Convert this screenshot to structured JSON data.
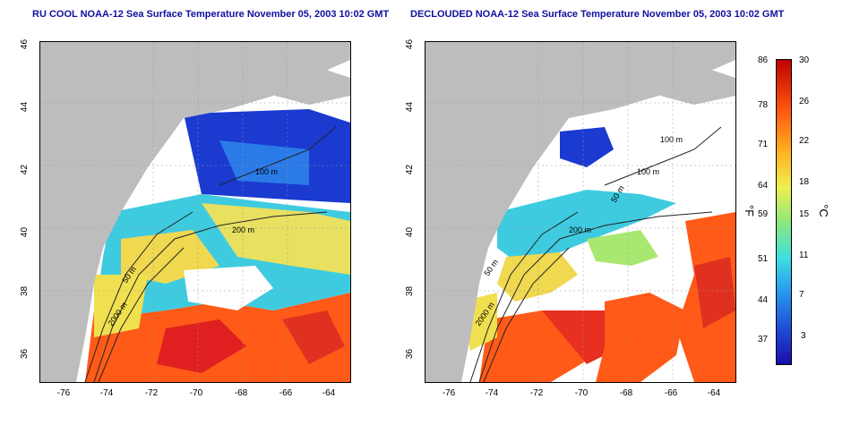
{
  "left_title": "RU COOL NOAA-12 Sea Surface Temperature November 05, 2003 10:02 GMT",
  "right_title": "DECLOUDED NOAA-12 Sea Surface Temperature November 05, 2003 10:02 GMT",
  "lat_ticks": [
    "46",
    "44",
    "42",
    "40",
    "38",
    "36"
  ],
  "lon_ticks": [
    "-76",
    "-74",
    "-72",
    "-70",
    "-68",
    "-66",
    "-64"
  ],
  "contours": {
    "c50": "50 m",
    "c100": "100 m",
    "c200": "200 m",
    "c2000": "2000 m"
  },
  "colorbar": {
    "f_ticks": [
      "86",
      "78",
      "71",
      "64",
      "59",
      "51",
      "44",
      "37"
    ],
    "c_ticks": [
      "30",
      "26",
      "22",
      "18",
      "15",
      "11",
      "7",
      "3"
    ],
    "f_unit": "°F",
    "c_unit": "°C"
  },
  "colors": {
    "land": "#bdbdbd",
    "cold": "#1a3ad0",
    "cool": "#2ab0f0",
    "mid": "#e8e860",
    "warm": "#ff6a1a",
    "hot": "#e02020",
    "title": "#1010a0"
  }
}
